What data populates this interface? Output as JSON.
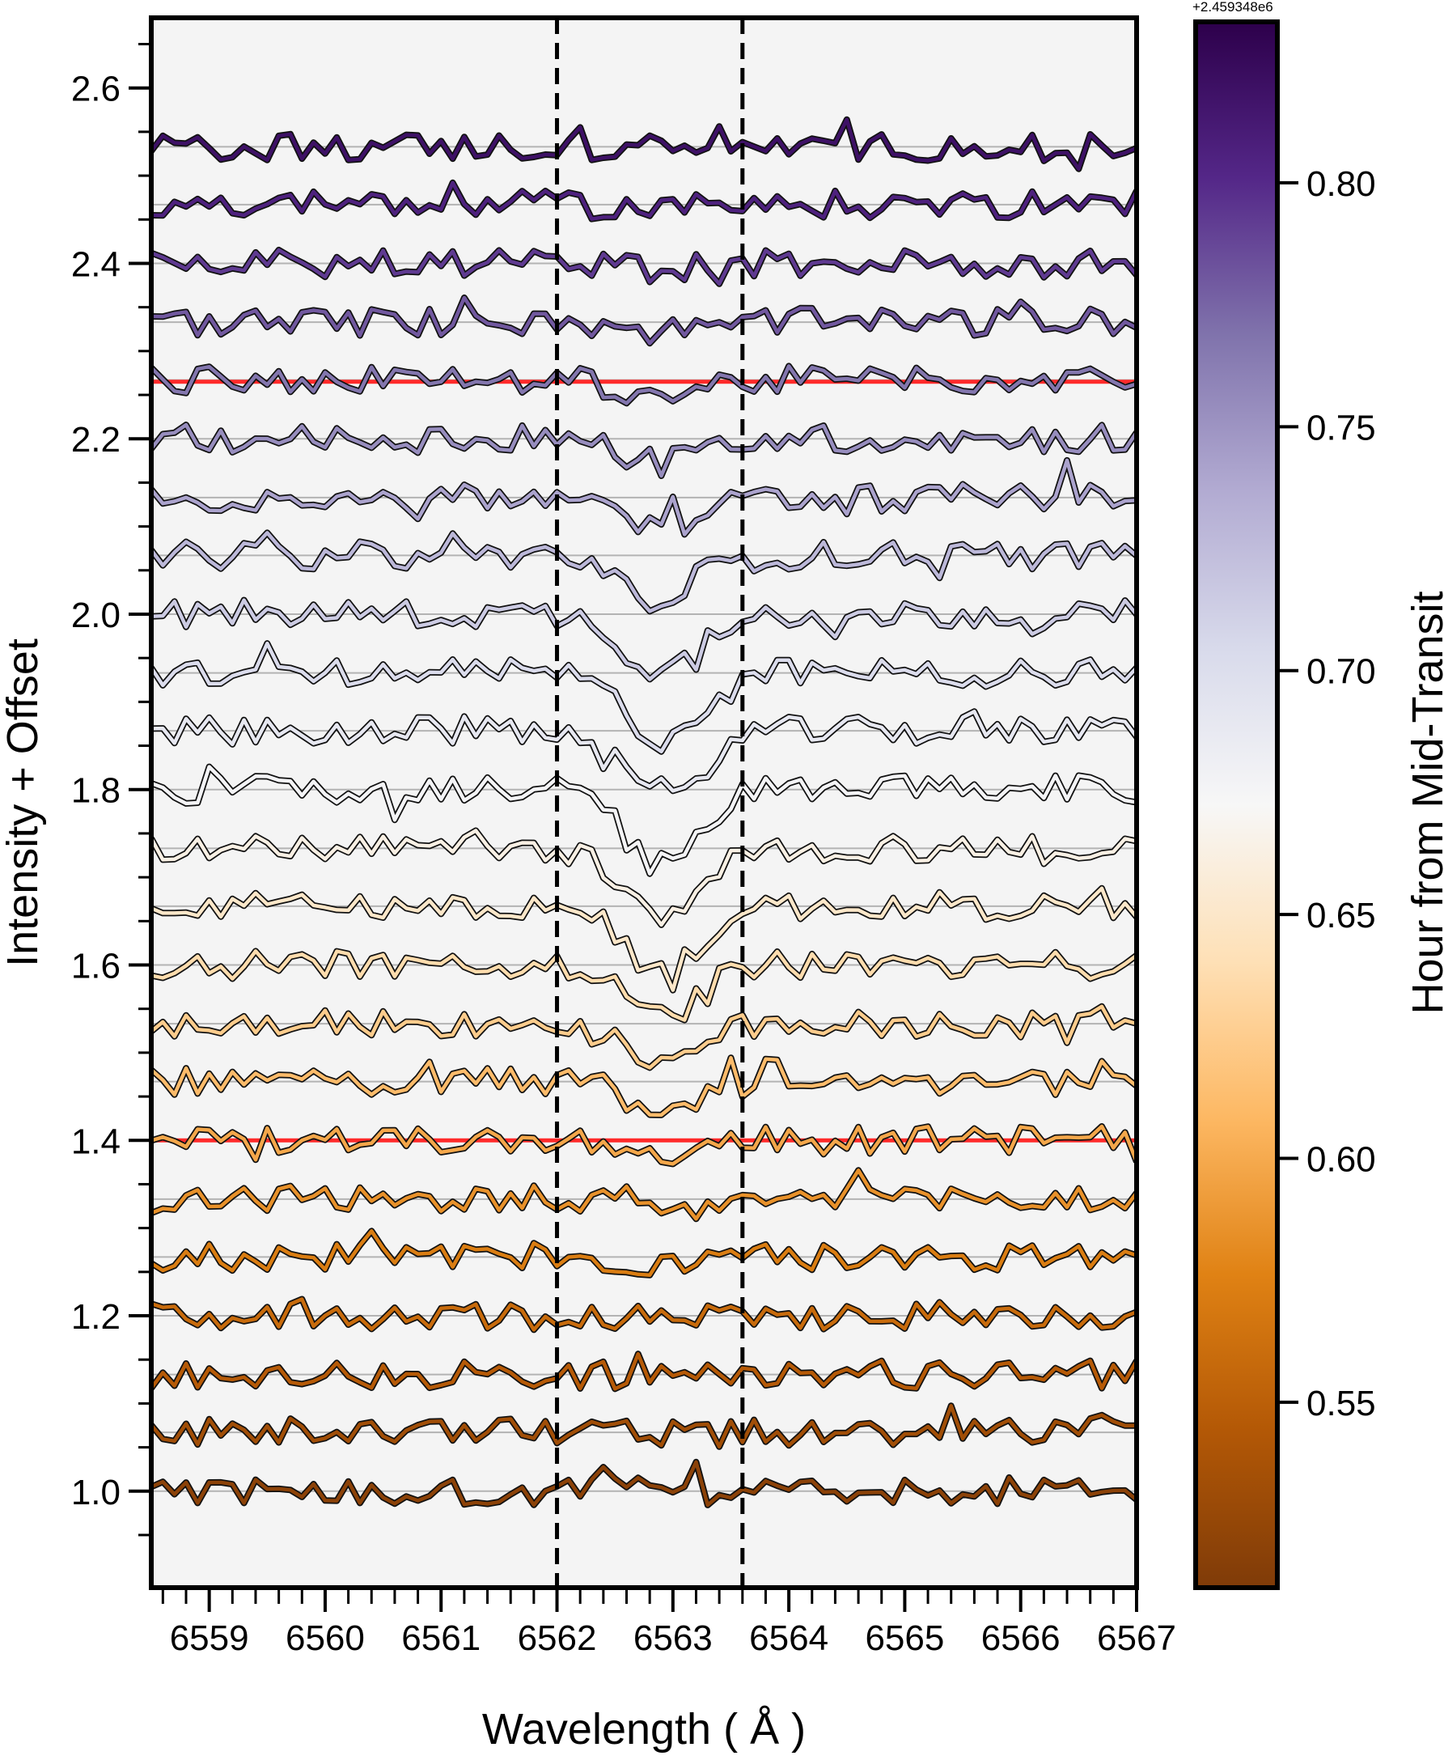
{
  "chart_data": {
    "type": "line",
    "title": "",
    "xlabel": "Wavelength ( Å )",
    "ylabel": "Intensity + Offset",
    "xlim": [
      6558.5,
      6567.0
    ],
    "ylim": [
      0.89,
      2.68
    ],
    "x_ticks": [
      6559,
      6560,
      6561,
      6562,
      6563,
      6564,
      6565,
      6566,
      6567
    ],
    "x_tick_labels": [
      "6559",
      "6560",
      "6561",
      "6562",
      "6563",
      "6564",
      "6565",
      "6566",
      "6567"
    ],
    "y_ticks": [
      1.0,
      1.2,
      1.4,
      1.6,
      1.8,
      2.0,
      2.2,
      2.4,
      2.6
    ],
    "y_tick_labels": [
      "1.0",
      "1.2",
      "1.4",
      "1.6",
      "1.8",
      "2.0",
      "2.2",
      "2.4",
      "2.6"
    ],
    "vertical_lines": [
      {
        "x": 6562.0,
        "style": "dashed",
        "color": "#000000"
      },
      {
        "x": 6563.6,
        "style": "dashed",
        "color": "#000000"
      }
    ],
    "horizontal_lines": [
      {
        "y": 1.4,
        "color": "#ff2a2a"
      },
      {
        "y": 2.265,
        "color": "#ff2a2a"
      }
    ],
    "baseline_offsets": [
      1.0,
      1.067,
      1.133,
      1.2,
      1.267,
      1.333,
      1.4,
      1.467,
      1.533,
      1.6,
      1.667,
      1.733,
      1.8,
      1.867,
      1.933,
      2.0,
      2.067,
      2.133,
      2.2,
      2.267,
      2.333,
      2.4,
      2.467,
      2.533
    ],
    "series_times_hours": [
      0.52,
      0.533,
      0.546,
      0.559,
      0.572,
      0.585,
      0.598,
      0.611,
      0.624,
      0.637,
      0.65,
      0.663,
      0.676,
      0.689,
      0.702,
      0.715,
      0.728,
      0.741,
      0.754,
      0.767,
      0.78,
      0.793,
      0.806,
      0.819
    ],
    "series_count": 24,
    "x_step": 0.1,
    "noise_amplitude": 0.016,
    "random_seed": 11,
    "absorption_feature": {
      "center": 6562.9,
      "width": 0.45,
      "max_depth": 0.085,
      "peak_series_index": 12,
      "spread": 5.5
    },
    "facecolor": "#f4f4f4",
    "colorbar": {
      "label": "Hour from Mid-Transit",
      "offset_text": "+2.459348e6",
      "vmin": 0.512,
      "vmax": 0.833,
      "ticks": [
        0.55,
        0.6,
        0.65,
        0.7,
        0.75,
        0.8
      ],
      "tick_labels": [
        "0.55",
        "0.60",
        "0.65",
        "0.70",
        "0.75",
        "0.80"
      ],
      "colormap": "PuOr",
      "stops": [
        "#7f3b08",
        "#b35806",
        "#e08214",
        "#fdb863",
        "#fee0b6",
        "#f7f7f7",
        "#d8daeb",
        "#b2abd2",
        "#8073ac",
        "#542788",
        "#2d004b"
      ]
    }
  }
}
